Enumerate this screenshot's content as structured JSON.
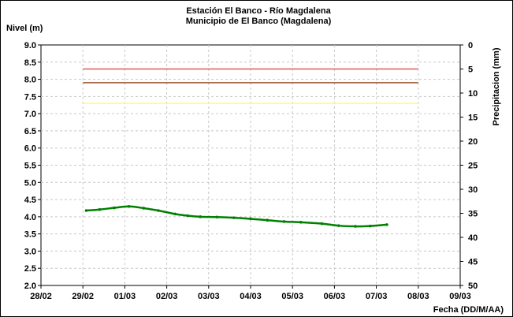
{
  "chart_data": {
    "type": "line",
    "title": "Estación El Banco - Río Magdalena",
    "subtitle": "Municipio de El Banco (Magdalena)",
    "ylabel": "Nivel (m)",
    "y2label": "Precipitacion (mm)",
    "xlabel": "Fecha (DD/M/AA)",
    "x_ticks": [
      "28/02",
      "29/02",
      "01/03",
      "02/03",
      "03/03",
      "04/03",
      "05/03",
      "06/03",
      "07/03",
      "08/03",
      "09/03"
    ],
    "xlim": [
      0,
      10
    ],
    "ylim": [
      2.0,
      9.0
    ],
    "y_ticks": [
      "2.0",
      "2.5",
      "3.0",
      "3.5",
      "4.0",
      "4.5",
      "5.0",
      "5.5",
      "6.0",
      "6.5",
      "7.0",
      "7.5",
      "8.0",
      "8.5",
      "9.0"
    ],
    "y2lim": [
      0,
      50
    ],
    "y2_ticks": [
      "0",
      "5",
      "10",
      "15",
      "20",
      "25",
      "30",
      "35",
      "40",
      "45",
      "50"
    ],
    "y2_inverted": true,
    "grid": true,
    "reference_lines": [
      {
        "y": 8.3,
        "x_range": [
          1.0,
          9.0
        ],
        "color": "#e05a5a"
      },
      {
        "y": 7.9,
        "x_range": [
          1.0,
          9.0
        ],
        "color": "#a0522d"
      },
      {
        "y": 7.3,
        "x_range": [
          1.0,
          9.0
        ],
        "color": "#ffff66"
      }
    ],
    "series": [
      {
        "color": "#008000",
        "x": [
          1.08,
          1.4,
          1.75,
          2.1,
          2.45,
          2.8,
          3.2,
          3.5,
          3.8,
          4.2,
          4.6,
          5.0,
          5.4,
          5.8,
          6.2,
          6.7,
          7.1,
          7.5,
          7.85,
          8.25
        ],
        "y": [
          4.18,
          4.21,
          4.26,
          4.3,
          4.25,
          4.18,
          4.08,
          4.03,
          4.0,
          3.99,
          3.97,
          3.94,
          3.9,
          3.86,
          3.84,
          3.8,
          3.74,
          3.72,
          3.73,
          3.77
        ]
      }
    ]
  }
}
